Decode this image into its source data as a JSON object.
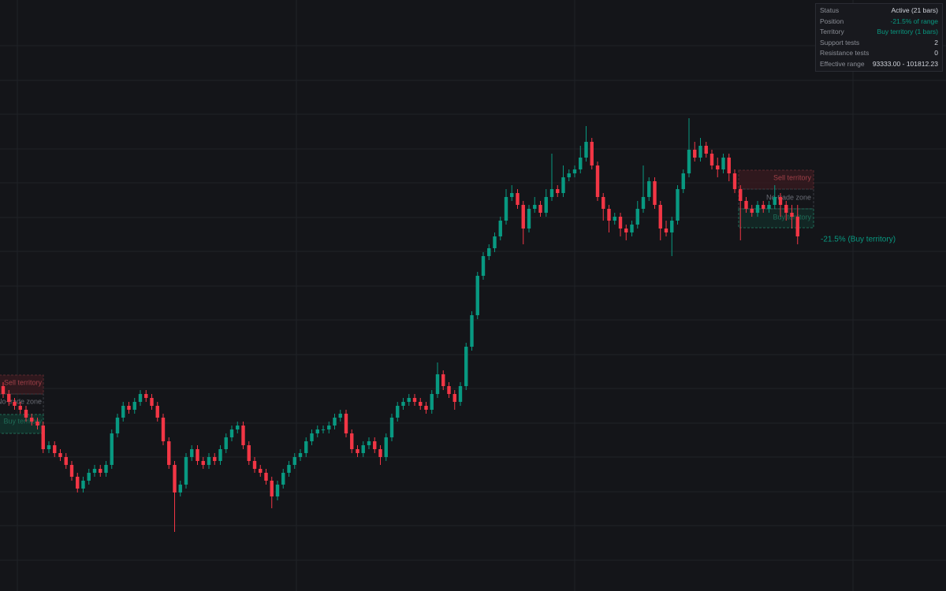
{
  "panel": {
    "rows": [
      {
        "label": "Status",
        "value": "Active (21 bars)"
      },
      {
        "label": "Position",
        "value": "-21.5% of range"
      },
      {
        "label": "Territory",
        "value": "Buy territory (1 bars)"
      },
      {
        "label": "Support tests",
        "value": 2
      },
      {
        "label": "Resistance tests",
        "value": 0
      },
      {
        "label": "Effective range",
        "value": "93333.00 - 101812.23"
      }
    ]
  },
  "chart_data": {
    "type": "candlestick",
    "ylim": [
      39900,
      126900
    ],
    "up_color": "#089981",
    "down_color": "#f23645",
    "zones": {
      "sell_label": "Sell territory",
      "neutral_label": "No-trade zone",
      "buy_label": "Buy territory"
    },
    "annotation": "-21.5% (Buy territory)",
    "candles": {
      "open": [
        70060,
        68900,
        67740,
        67160,
        66580,
        65420,
        64840,
        64260,
        60780,
        61360,
        60200,
        59620,
        58460,
        56720,
        54980,
        56140,
        57300,
        57880,
        57300,
        58460,
        63100,
        65420,
        67160,
        66580,
        67740,
        68900,
        68320,
        67160,
        65420,
        61940,
        58460,
        54400,
        55560,
        59620,
        60780,
        59040,
        58460,
        59620,
        59040,
        60780,
        62520,
        63680,
        64260,
        61360,
        59040,
        57880,
        57300,
        56140,
        53820,
        55560,
        57300,
        58460,
        59620,
        60200,
        61940,
        63100,
        63680,
        63680,
        64260,
        65420,
        66000,
        63100,
        60780,
        60200,
        61360,
        61940,
        60780,
        59620,
        62520,
        65420,
        67160,
        67740,
        68320,
        67740,
        67160,
        66580,
        68900,
        71800,
        70060,
        68900,
        67740,
        70060,
        75860,
        80500,
        86300,
        89200,
        90360,
        92100,
        94420,
        97900,
        98480,
        96740,
        93260,
        96160,
        96740,
        95580,
        97900,
        99060,
        98480,
        100800,
        101380,
        101960,
        103700,
        106020,
        102540,
        97900,
        96160,
        94420,
        95000,
        93260,
        92680,
        93840,
        96160,
        97900,
        100220,
        96740,
        93260,
        92680,
        94420,
        99060,
        101380,
        104860,
        103700,
        105440,
        104280,
        102540,
        101960,
        103700,
        101380,
        99060,
        97320,
        96160,
        95580,
        96740,
        96160,
        96740,
        97900,
        96740,
        95580,
        95000
      ],
      "high": [
        70640,
        69480,
        68320,
        67740,
        67160,
        66000,
        65420,
        64840,
        61940,
        61940,
        60780,
        60200,
        59040,
        57300,
        56720,
        57880,
        58460,
        58460,
        59040,
        63680,
        66000,
        67740,
        67740,
        68320,
        69480,
        69480,
        68900,
        67740,
        66000,
        62520,
        59040,
        56140,
        60200,
        61360,
        61360,
        59620,
        60200,
        60200,
        61360,
        63100,
        64260,
        64840,
        64840,
        61940,
        59620,
        58460,
        57880,
        56720,
        56140,
        57880,
        59040,
        60200,
        60780,
        62520,
        63680,
        64260,
        64260,
        64840,
        66000,
        66580,
        66580,
        63680,
        61360,
        61940,
        62520,
        62520,
        61360,
        63100,
        66000,
        67740,
        68320,
        68900,
        68900,
        68320,
        67740,
        69480,
        73540,
        72380,
        70640,
        69480,
        70640,
        76440,
        81080,
        86880,
        89780,
        90940,
        92680,
        95000,
        99060,
        99640,
        99060,
        97320,
        96740,
        97900,
        97320,
        99060,
        104280,
        99640,
        102540,
        101960,
        102540,
        105440,
        108340,
        106600,
        103120,
        98480,
        96740,
        95580,
        95580,
        93840,
        94420,
        97320,
        102540,
        100800,
        100800,
        97320,
        94420,
        95000,
        99640,
        101960,
        109500,
        106020,
        106600,
        106020,
        104860,
        103700,
        104280,
        104280,
        101960,
        99640,
        97900,
        96740,
        97320,
        97320,
        97320,
        99640,
        98480,
        97320,
        96740,
        96740
      ],
      "low": [
        68320,
        67160,
        66580,
        66000,
        64840,
        64260,
        63680,
        60200,
        60200,
        59620,
        59040,
        57880,
        56140,
        54400,
        54400,
        55560,
        56720,
        56720,
        56720,
        57880,
        62520,
        64840,
        66000,
        66000,
        67160,
        67740,
        66580,
        64840,
        61360,
        57880,
        48600,
        53820,
        54980,
        59040,
        58460,
        57880,
        57880,
        58460,
        58460,
        60200,
        61940,
        63100,
        60780,
        58460,
        57300,
        56720,
        55560,
        52080,
        53240,
        54980,
        56720,
        57880,
        59040,
        59620,
        61360,
        62520,
        63100,
        63100,
        63680,
        64840,
        62520,
        60200,
        59620,
        59620,
        60780,
        60200,
        58460,
        59040,
        61940,
        64840,
        66580,
        67160,
        67160,
        66580,
        66000,
        66000,
        68320,
        69480,
        68320,
        66580,
        67160,
        69480,
        75280,
        79920,
        85720,
        88620,
        89780,
        91520,
        93840,
        97320,
        96160,
        90940,
        92680,
        95580,
        95000,
        95000,
        97320,
        97900,
        97900,
        100220,
        100800,
        101380,
        103120,
        101960,
        97320,
        94420,
        92680,
        93840,
        92100,
        91520,
        92100,
        93260,
        95580,
        97320,
        96160,
        91520,
        92100,
        89200,
        93840,
        98480,
        100800,
        103120,
        103120,
        103700,
        101960,
        100800,
        101380,
        100220,
        98480,
        91520,
        95580,
        95000,
        95000,
        95580,
        95580,
        96160,
        95000,
        94420,
        93260,
        90940
      ],
      "close": [
        68900,
        67740,
        67160,
        66580,
        65420,
        64840,
        64260,
        60780,
        61360,
        60200,
        59620,
        58460,
        56720,
        54980,
        56140,
        57300,
        57880,
        57300,
        58460,
        63100,
        65420,
        67160,
        66580,
        67740,
        68900,
        68320,
        67160,
        65420,
        61940,
        58460,
        54400,
        55560,
        59620,
        60780,
        59040,
        58460,
        59620,
        59040,
        60780,
        62520,
        63680,
        64260,
        61360,
        59040,
        57880,
        57300,
        56140,
        53820,
        55560,
        57300,
        58460,
        59620,
        60200,
        61940,
        63100,
        63680,
        63680,
        64260,
        65420,
        66000,
        63100,
        60780,
        60200,
        61360,
        61940,
        60780,
        59620,
        62520,
        65420,
        67160,
        67740,
        68320,
        67740,
        67160,
        66580,
        68900,
        71800,
        70060,
        68900,
        67740,
        70060,
        75860,
        80500,
        86300,
        89200,
        90360,
        92100,
        94420,
        97900,
        98480,
        96740,
        93260,
        96160,
        96740,
        95580,
        97900,
        99060,
        98480,
        100800,
        101380,
        101960,
        103700,
        106020,
        102540,
        97900,
        96160,
        94420,
        95000,
        93260,
        92680,
        93840,
        96160,
        97900,
        100220,
        96740,
        93260,
        92680,
        94420,
        99060,
        101380,
        104860,
        103700,
        105440,
        104280,
        102540,
        101960,
        103700,
        101380,
        99060,
        97320,
        96160,
        95580,
        96740,
        96160,
        96740,
        97900,
        96740,
        95580,
        95000,
        92100
      ]
    }
  }
}
